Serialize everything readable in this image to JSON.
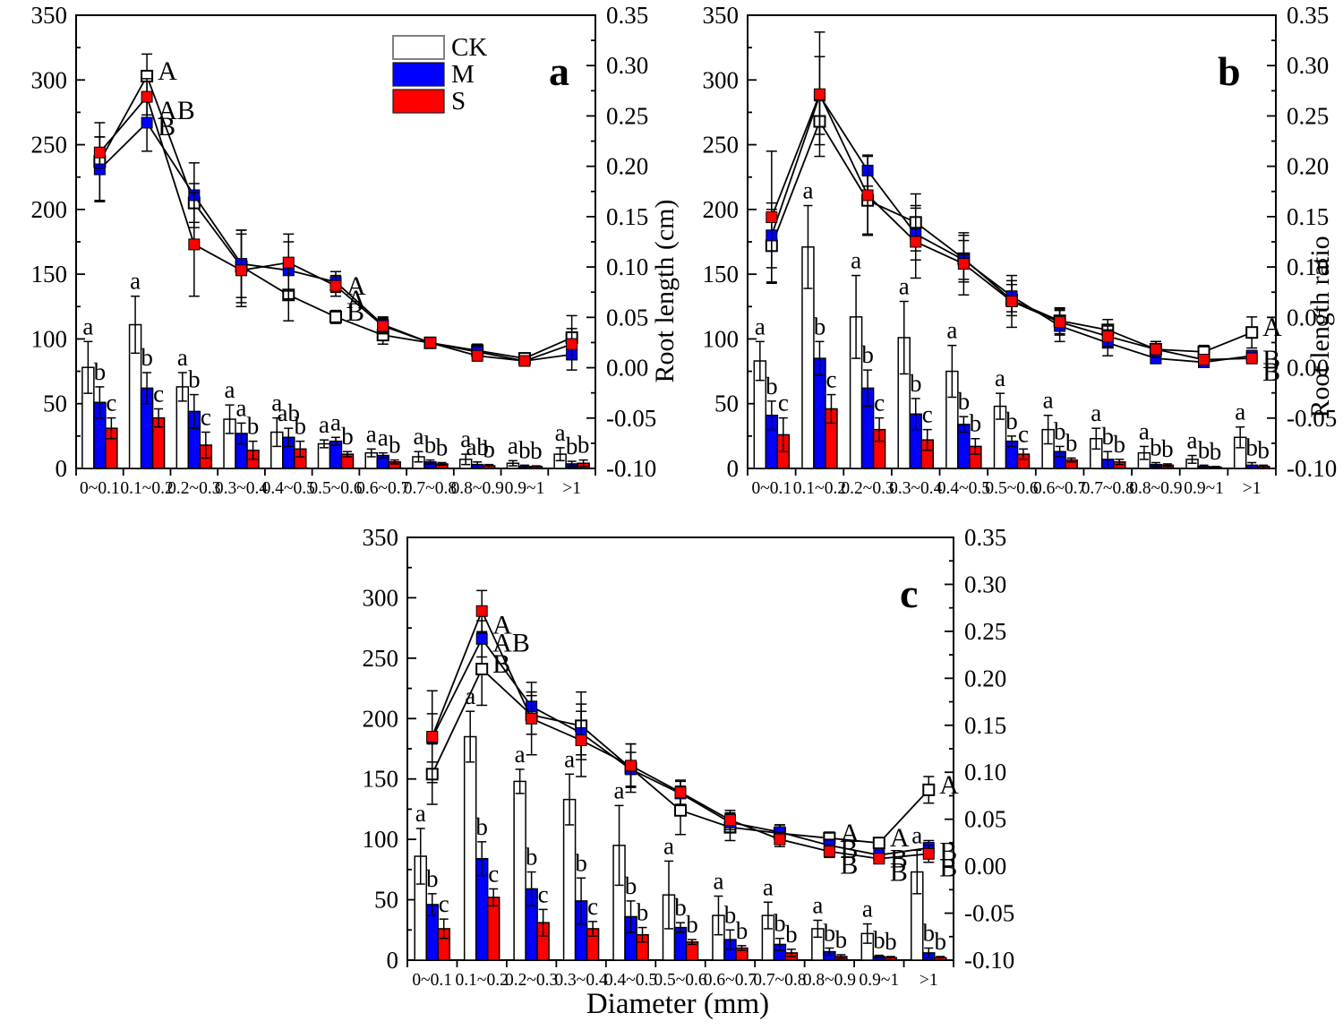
{
  "figure": {
    "xlabel": "Diameter (mm)",
    "ylabel_left": "Root length (cm)",
    "ylabel_right": "Root length ratio",
    "panel_letters": [
      "a",
      "b",
      "c"
    ],
    "legend": {
      "entries": [
        {
          "label": "CK",
          "color": "#ffffff"
        },
        {
          "label": "M",
          "color": "#0000ff"
        },
        {
          "label": "S",
          "color": "#ff0000"
        }
      ]
    },
    "categories": [
      "0~0.1",
      "0.1~0.2",
      "0.2~0.3",
      "0.3~0.4",
      "0.4~0.5",
      "0.5~0.6",
      "0.6~0.7",
      "0.7~0.8",
      "0.8~0.9",
      "0.9~1",
      ">1"
    ],
    "left_axis": {
      "min": 0,
      "max": 350,
      "major": 50,
      "minor": 25
    },
    "right_axis": {
      "min": -0.1,
      "max": 0.35,
      "major": 0.05,
      "minor": 0.025
    }
  },
  "chart_data": [
    {
      "panel": "a",
      "type": "bar+line",
      "bars": [
        {
          "name": "CK",
          "color": "#ffffff",
          "values": [
            78,
            111,
            63,
            38,
            28,
            19,
            12,
            9,
            7,
            4,
            11
          ],
          "errors": [
            20,
            22,
            11,
            11,
            11,
            3,
            3,
            4,
            4,
            2,
            5
          ],
          "letters": [
            "a",
            "a",
            "a",
            "a",
            "a",
            "a",
            "a",
            "a",
            "a",
            "a",
            "a"
          ]
        },
        {
          "name": "M",
          "color": "#0000ff",
          "values": [
            51,
            62,
            44,
            27,
            24,
            21,
            10,
            5,
            3,
            1.5,
            3.5
          ],
          "errors": [
            12,
            12,
            13,
            8,
            7,
            3,
            2,
            1.5,
            2,
            1,
            2
          ],
          "letters": [
            "b",
            "b",
            "b",
            "a",
            "ab",
            "a",
            "a",
            "b",
            "ab",
            "b",
            "b"
          ]
        },
        {
          "name": "S",
          "color": "#ff0000",
          "values": [
            31,
            39,
            18,
            14,
            15,
            11,
            5,
            3.5,
            2,
            1.5,
            4
          ],
          "errors": [
            8,
            7,
            10,
            7,
            6,
            2,
            1.5,
            1,
            1,
            0.5,
            2.5
          ],
          "letters": [
            "c",
            "c",
            "c",
            "b",
            "b",
            "b",
            "b",
            "b",
            "b",
            "b",
            "b"
          ]
        }
      ],
      "lines": [
        {
          "name": "CK",
          "marker": "open-square",
          "color": "#ffffff",
          "values": [
            237,
            303,
            205,
            156,
            134,
            117,
            103,
            97,
            91,
            85,
            101
          ],
          "errors": [
            30,
            17,
            15,
            28,
            20,
            5,
            7,
            4,
            5,
            4,
            17
          ],
          "point_labels": {
            "1": "A",
            "5": "B"
          }
        },
        {
          "name": "M",
          "marker": "filled-square",
          "color": "#0000ff",
          "values": [
            231,
            267,
            211,
            158,
            153,
            144,
            111,
            97,
            90,
            83,
            88
          ],
          "errors": [
            25,
            22,
            25,
            26,
            22,
            8,
            6,
            4,
            4,
            3,
            12
          ],
          "point_labels": {
            "1": "B",
            "5": "A"
          }
        },
        {
          "name": "S",
          "marker": "filled-square",
          "color": "#ff0000",
          "values": [
            244,
            287,
            173,
            153,
            159,
            141,
            110,
            97,
            87,
            83,
            96
          ],
          "errors": [
            12,
            14,
            40,
            28,
            22,
            8,
            6,
            4,
            4,
            3,
            12
          ],
          "point_labels": {
            "1": "AB",
            "5": "A"
          }
        }
      ]
    },
    {
      "panel": "b",
      "type": "bar+line",
      "bars": [
        {
          "name": "CK",
          "color": "#ffffff",
          "values": [
            83,
            171,
            117,
            101,
            75,
            48,
            30,
            23,
            12,
            7,
            24
          ],
          "errors": [
            15,
            32,
            32,
            28,
            20,
            10,
            11,
            8,
            5,
            3,
            8
          ],
          "letters": [
            "a",
            "a",
            "a",
            "a",
            "a",
            "a",
            "a",
            "a",
            "a",
            "a",
            "a"
          ]
        },
        {
          "name": "M",
          "color": "#0000ff",
          "values": [
            41,
            85,
            62,
            42,
            34,
            21,
            13,
            7,
            3,
            1.5,
            2.5
          ],
          "errors": [
            11,
            13,
            14,
            12,
            6,
            4,
            4,
            6,
            1.5,
            1,
            2
          ],
          "letters": [
            "b",
            "b",
            "b",
            "b",
            "b",
            "b",
            "b",
            "b",
            "b",
            "b",
            "b"
          ]
        },
        {
          "name": "S",
          "color": "#ff0000",
          "values": [
            26,
            46,
            30,
            22,
            17,
            11,
            6.5,
            5,
            2.5,
            1,
            1.5
          ],
          "errors": [
            13,
            11,
            9,
            8,
            6,
            4,
            1.5,
            2,
            1,
            0.5,
            1
          ],
          "letters": [
            "c",
            "c",
            "c",
            "c",
            "b",
            "c",
            "b",
            "b",
            "b",
            "b",
            "b"
          ]
        }
      ],
      "lines": [
        {
          "name": "CK",
          "marker": "open-square",
          "color": "#ffffff",
          "values": [
            172,
            268,
            207,
            190,
            162,
            130,
            114,
            107,
            92,
            90,
            105
          ],
          "errors": [
            28,
            18,
            27,
            22,
            18,
            12,
            10,
            8,
            6,
            5,
            12
          ],
          "point_labels": {
            "10": "A"
          }
        },
        {
          "name": "M",
          "marker": "filled-square",
          "color": "#0000ff",
          "values": [
            180,
            288,
            230,
            181,
            161,
            133,
            110,
            97,
            85,
            82,
            87
          ],
          "errors": [
            25,
            30,
            12,
            20,
            15,
            12,
            12,
            10,
            4,
            4,
            4
          ],
          "point_labels": {
            "10": "B"
          }
        },
        {
          "name": "S",
          "marker": "filled-square",
          "color": "#ff0000",
          "values": [
            194,
            289,
            211,
            175,
            158,
            129,
            113,
            102,
            92,
            84,
            85
          ],
          "errors": [
            51,
            48,
            30,
            28,
            24,
            20,
            10,
            8,
            6,
            4,
            4
          ],
          "point_labels": {
            "10": "B"
          }
        }
      ]
    },
    {
      "panel": "c",
      "type": "bar+line",
      "bars": [
        {
          "name": "CK",
          "color": "#ffffff",
          "values": [
            86,
            185,
            148,
            133,
            95,
            54,
            37,
            37,
            26,
            22,
            73
          ],
          "errors": [
            23,
            21,
            10,
            21,
            33,
            28,
            16,
            11,
            7,
            8,
            18
          ],
          "letters": [
            "a",
            "a",
            "a",
            "a",
            "a",
            "a",
            "a",
            "a",
            "a",
            "a",
            "a"
          ]
        },
        {
          "name": "M",
          "color": "#0000ff",
          "values": [
            46,
            84,
            59,
            49,
            36,
            27,
            17,
            13,
            7,
            3,
            6
          ],
          "errors": [
            9,
            14,
            14,
            19,
            13,
            4,
            8,
            5,
            3,
            1,
            4
          ],
          "letters": [
            "b",
            "b",
            "b",
            "b",
            "b",
            "b",
            "b",
            "b",
            "b",
            "b",
            "b"
          ]
        },
        {
          "name": "S",
          "color": "#ff0000",
          "values": [
            26,
            52,
            31,
            26,
            21,
            15,
            10,
            6,
            3,
            2,
            2
          ],
          "errors": [
            8,
            7,
            11,
            6,
            6,
            2,
            2,
            3,
            1.5,
            1,
            1
          ],
          "letters": [
            "c",
            "c",
            "c",
            "c",
            "b",
            "b",
            "b",
            "b",
            "b",
            "b",
            "b"
          ]
        }
      ],
      "lines": [
        {
          "name": "CK",
          "marker": "open-square",
          "color": "#ffffff",
          "values": [
            154,
            241,
            203,
            194,
            159,
            124,
            110,
            105,
            101,
            97,
            141
          ],
          "errors": [
            25,
            30,
            16,
            28,
            20,
            20,
            11,
            7,
            5,
            4,
            11
          ],
          "point_labels": {
            "1": "B",
            "8": "A",
            "9": "A",
            "10": "A"
          }
        },
        {
          "name": "M",
          "marker": "filled-square",
          "color": "#0000ff",
          "values": [
            184,
            266,
            210,
            188,
            158,
            138,
            114,
            106,
            95,
            87,
            93
          ],
          "errors": [
            20,
            15,
            12,
            18,
            14,
            10,
            8,
            6,
            5,
            4,
            6
          ],
          "point_labels": {
            "1": "AB",
            "8": "B",
            "9": "B",
            "10": "B"
          }
        },
        {
          "name": "S",
          "marker": "filled-square",
          "color": "#ff0000",
          "values": [
            185,
            289,
            200,
            182,
            161,
            139,
            116,
            100,
            90,
            84,
            88
          ],
          "errors": [
            38,
            17,
            30,
            30,
            18,
            10,
            8,
            6,
            5,
            4,
            7
          ],
          "point_labels": {
            "1": "A",
            "8": "B",
            "9": "B",
            "10": "B"
          }
        }
      ]
    }
  ]
}
